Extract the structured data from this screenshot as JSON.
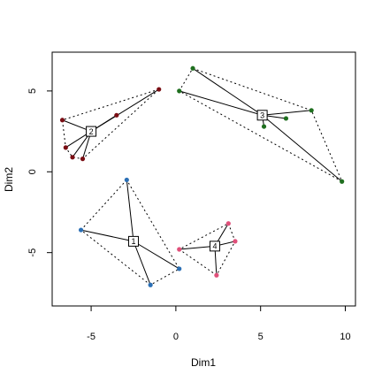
{
  "chart_data": {
    "type": "scatter",
    "xlabel": "Dim1",
    "ylabel": "Dim2",
    "xlim": [
      -7.3,
      10.6
    ],
    "ylim": [
      -8.3,
      7.4
    ],
    "xticks": [
      -5,
      0,
      5,
      10
    ],
    "yticks": [
      -5,
      0,
      5
    ],
    "clusters": [
      {
        "label": "1",
        "color": "#2b6fb5",
        "center": [
          -2.5,
          -4.3
        ],
        "points": [
          [
            -2.9,
            -0.5
          ],
          [
            -5.6,
            -3.6
          ],
          [
            -1.5,
            -7.0
          ],
          [
            0.2,
            -6.0
          ]
        ],
        "hull": [
          [
            -2.9,
            -0.5
          ],
          [
            -5.6,
            -3.6
          ],
          [
            -1.5,
            -7.0
          ],
          [
            0.2,
            -6.0
          ]
        ]
      },
      {
        "label": "2",
        "color": "#7a0e14",
        "center": [
          -5.0,
          2.5
        ],
        "points": [
          [
            -1.0,
            5.1
          ],
          [
            -3.5,
            3.5
          ],
          [
            -6.7,
            3.2
          ],
          [
            -6.5,
            1.5
          ],
          [
            -6.1,
            0.9
          ],
          [
            -5.5,
            0.8
          ]
        ],
        "hull": [
          [
            -1.0,
            5.1
          ],
          [
            -6.7,
            3.2
          ],
          [
            -6.5,
            1.5
          ],
          [
            -6.1,
            0.9
          ],
          [
            -5.5,
            0.8
          ]
        ]
      },
      {
        "label": "3",
        "color": "#1f6f1f",
        "center": [
          5.1,
          3.5
        ],
        "points": [
          [
            1.0,
            6.4
          ],
          [
            0.2,
            5.0
          ],
          [
            8.0,
            3.8
          ],
          [
            6.5,
            3.3
          ],
          [
            5.2,
            2.8
          ],
          [
            9.8,
            -0.6
          ]
        ],
        "hull": [
          [
            1.0,
            6.4
          ],
          [
            8.0,
            3.8
          ],
          [
            9.8,
            -0.6
          ],
          [
            0.2,
            5.0
          ]
        ]
      },
      {
        "label": "4",
        "color": "#e0507a",
        "center": [
          2.3,
          -4.6
        ],
        "points": [
          [
            3.1,
            -3.2
          ],
          [
            3.5,
            -4.3
          ],
          [
            2.4,
            -6.4
          ],
          [
            0.2,
            -4.8
          ]
        ],
        "hull": [
          [
            3.1,
            -3.2
          ],
          [
            3.5,
            -4.3
          ],
          [
            2.4,
            -6.4
          ],
          [
            0.2,
            -4.8
          ]
        ]
      }
    ]
  }
}
